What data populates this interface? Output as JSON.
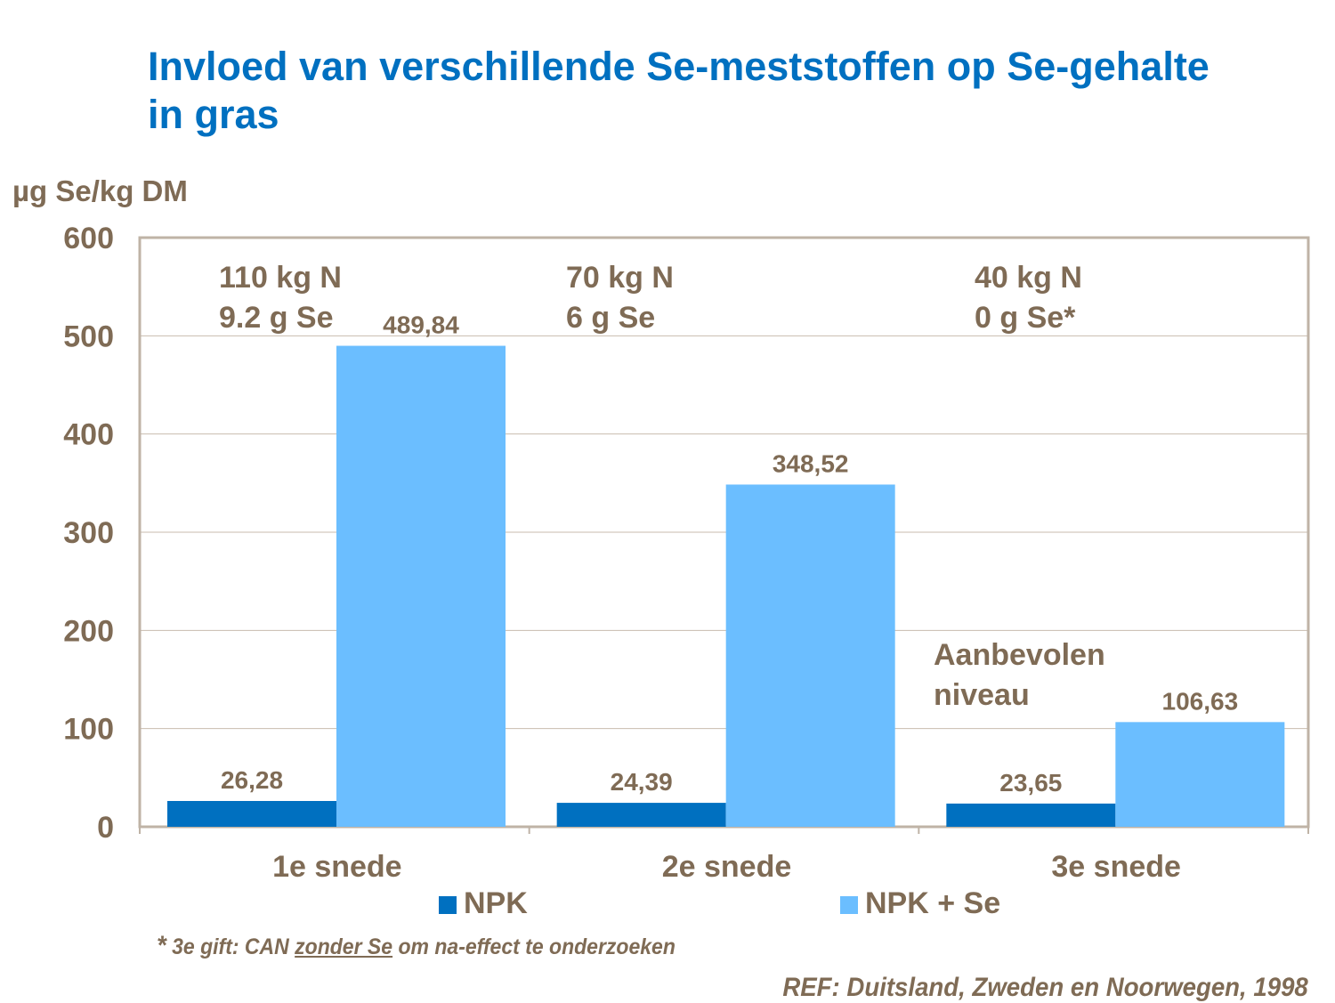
{
  "title": "Invloed van verschillende Se-meststoffen op Se-gehalte in gras",
  "chart_data": {
    "type": "bar",
    "title": "Invloed van verschillende Se-meststoffen op Se-gehalte in gras",
    "ylabel": "µg Se/kg DM",
    "xlabel": "",
    "ylim": [
      0,
      600
    ],
    "yticks": [
      "0",
      "100",
      "200",
      "300",
      "400",
      "500",
      "600"
    ],
    "grid": true,
    "legend_position": "bottom",
    "categories": [
      "1e snede",
      "2e snede",
      "3e snede"
    ],
    "series": [
      {
        "name": "NPK",
        "color": "#0070C0",
        "values": [
          26.28,
          24.39,
          23.65
        ],
        "labels": [
          "26,28",
          "24,39",
          "23,65"
        ]
      },
      {
        "name": "NPK + Se",
        "color": "#6BBEFF",
        "values": [
          489.84,
          348.52,
          106.63
        ],
        "labels": [
          "489,84",
          "348,52",
          "106,63"
        ]
      }
    ],
    "annotations": [
      {
        "line1": "110 kg N",
        "line2": "9.2 g Se"
      },
      {
        "line1": "70 kg N",
        "line2": "6 g Se"
      },
      {
        "line1": "40 kg N",
        "line2": "0 g Se*"
      },
      {
        "line1": "Aanbevolen",
        "line2": "niveau"
      }
    ]
  },
  "footnote": {
    "star": "*",
    "pre": " 3e gift: CAN ",
    "underlined": "zonder Se",
    "post": " om na-effect te onderzoeken"
  },
  "reference": "REF: Duitsland, Zweden en Noorwegen, 1998"
}
